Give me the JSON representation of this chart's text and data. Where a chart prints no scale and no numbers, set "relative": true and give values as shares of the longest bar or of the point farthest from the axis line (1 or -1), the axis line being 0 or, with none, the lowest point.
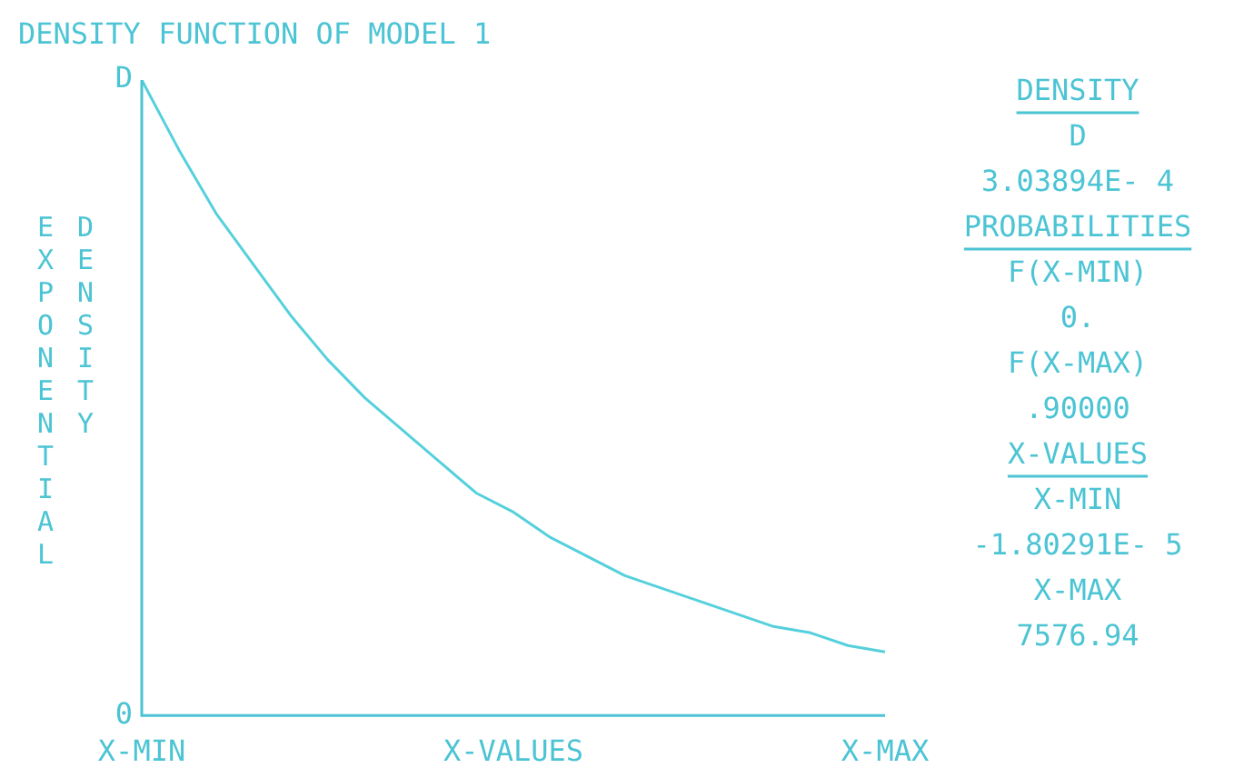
{
  "chart_data": {
    "type": "line",
    "title": "DENSITY FUNCTION OF MODEL 1",
    "xlabel": "X-VALUES",
    "ylabel": "EXPONENTIAL DENSITY",
    "relative": true,
    "categories": [
      "X-MIN",
      null,
      null,
      null,
      null,
      null,
      null,
      null,
      null,
      null,
      null,
      null,
      null,
      null,
      null,
      null,
      null,
      null,
      null,
      null,
      "X-MAX"
    ],
    "series": [
      {
        "color": "#55d0dc",
        "values": [
          1,
          0.89,
          0.79,
          0.71,
          0.63,
          0.56,
          0.5,
          0.45,
          0.4,
          0.35,
          0.32,
          0.28,
          0.25,
          0.22,
          0.2,
          0.18,
          0.16,
          0.14,
          0.13,
          0.11,
          0.1
        ]
      }
    ],
    "annotations": [
      "D",
      "0",
      "DENSITY",
      "D",
      "3.03894E- 4",
      "PROBABILITIES",
      "F(X-MIN)",
      "0.",
      "F(X-MAX)",
      ".90000",
      "X-VALUES",
      "X-MIN",
      "-1.80291E- 5",
      "X-MAX",
      "7576.94"
    ],
    "grid": false,
    "legend": false,
    "marker": "none",
    "line_style": "solid"
  }
}
